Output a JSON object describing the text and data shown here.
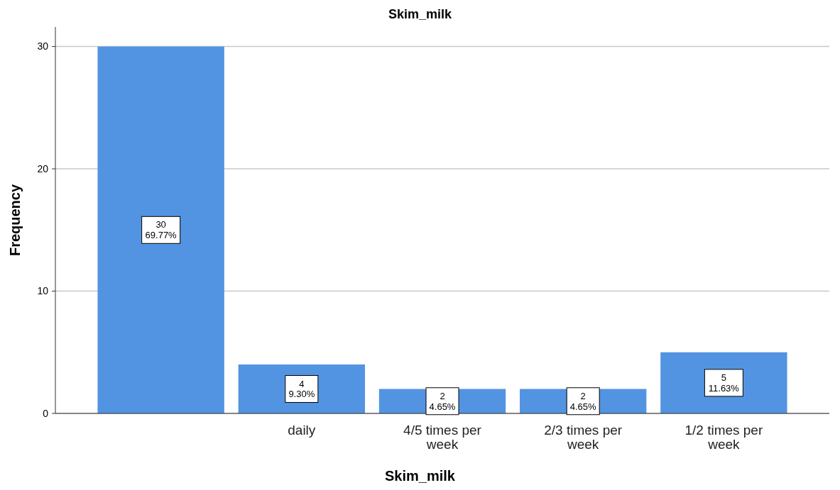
{
  "chart_data": {
    "type": "bar",
    "title": "Skim_milk",
    "xlabel": "Skim_milk",
    "ylabel": "Frequency",
    "categories": [
      null,
      "daily",
      "4/5 times per week",
      "2/3 times per week",
      "1/2 times per week"
    ],
    "values": [
      30,
      4,
      2,
      2,
      5
    ],
    "value_labels": [
      "30\n69.77%",
      "4\n9.30%",
      "2\n4.65%",
      "2\n4.65%",
      "5\n11.63%"
    ],
    "color": "#5294e2",
    "ylim": [
      0,
      31.6
    ],
    "yticks": [
      0,
      10,
      20,
      30
    ],
    "grid": "y"
  }
}
